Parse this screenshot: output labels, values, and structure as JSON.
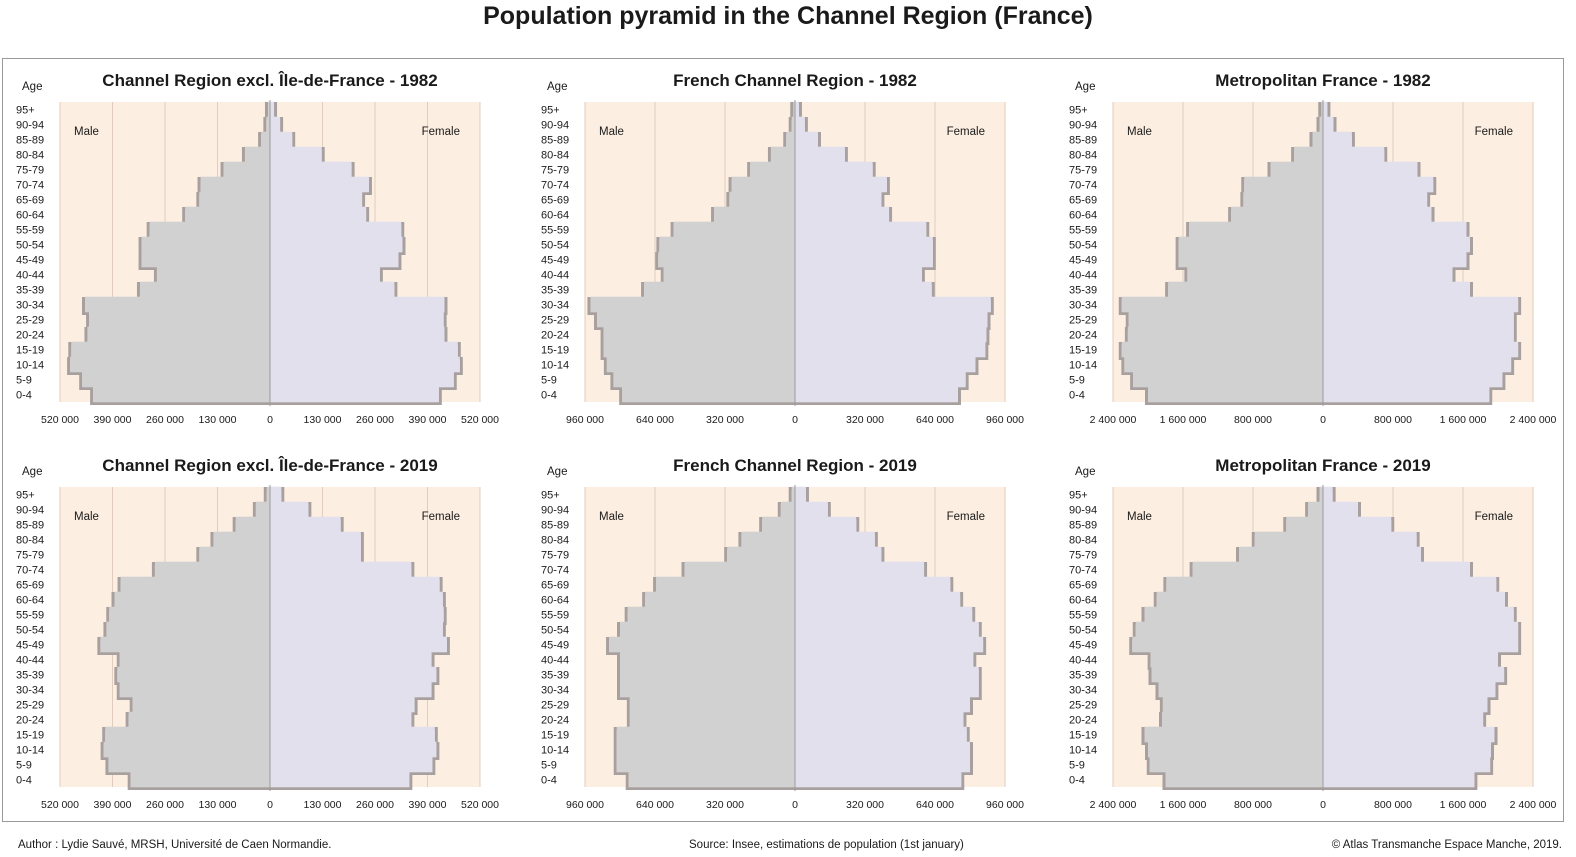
{
  "title": "Population pyramid in the Channel Region (France)",
  "footer": {
    "author": "Author : Lydie Sauvé, MRSH, Université de Caen Normandie.",
    "source": "Source: Insee, estimations de population (1st january)",
    "copyright": "© Atlas Transmanche Espace Manche, 2019."
  },
  "colors": {
    "background_fill": "#fdeee2",
    "male_bars": "#d1d1d1",
    "female_bars": "#e3e0ee",
    "bar_shadow": "#a7a09e",
    "grid": "#e0cdbd",
    "axis": "#9a9a9a"
  },
  "chart_data": [
    {
      "type": "bar",
      "title": "Channel Region excl. Île-de-France - 1982",
      "y_axis_title": "Age",
      "left_label": "Male",
      "right_label": "Female",
      "tick_labels": [
        "520 000",
        "390 000",
        "260 000",
        "130 000",
        "0",
        "130 000",
        "260 000",
        "390 000",
        "520 000"
      ],
      "xlim": [
        -520000,
        520000
      ],
      "grid": true,
      "categories": [
        "95+",
        "90-94",
        "85-89",
        "80-84",
        "75-79",
        "70-74",
        "65-69",
        "60-64",
        "55-59",
        "50-54",
        "45-49",
        "40-44",
        "35-39",
        "30-34",
        "25-29",
        "20-24",
        "15-19",
        "10-14",
        "5-9",
        "0-4"
      ],
      "series": [
        {
          "name": "Male",
          "values": [
            5000,
            9000,
            22000,
            62000,
            115000,
            172000,
            175000,
            210000,
            298000,
            318000,
            318000,
            280000,
            322000,
            458000,
            448000,
            452000,
            492000,
            495000,
            465000,
            438000
          ]
        },
        {
          "name": "Female",
          "values": [
            10000,
            25000,
            55000,
            128000,
            202000,
            245000,
            228000,
            238000,
            325000,
            328000,
            318000,
            272000,
            308000,
            432000,
            430000,
            432000,
            465000,
            470000,
            455000,
            418000
          ]
        }
      ]
    },
    {
      "type": "bar",
      "title": "French Channel Region - 1982",
      "y_axis_title": "Age",
      "left_label": "Male",
      "right_label": "Female",
      "tick_labels": [
        "960 000",
        "640 000",
        "320 000",
        "0",
        "320 000",
        "640 000",
        "960 000"
      ],
      "xlim": [
        -960000,
        960000
      ],
      "grid": true,
      "categories": [
        "95+",
        "90-94",
        "85-89",
        "80-84",
        "75-79",
        "70-74",
        "65-69",
        "60-64",
        "55-59",
        "50-54",
        "45-49",
        "40-44",
        "35-39",
        "30-34",
        "25-29",
        "20-24",
        "15-19",
        "10-14",
        "5-9",
        "0-4"
      ],
      "series": [
        {
          "name": "Male",
          "values": [
            8000,
            15000,
            40000,
            110000,
            205000,
            290000,
            300000,
            370000,
            555000,
            620000,
            625000,
            600000,
            690000,
            935000,
            905000,
            875000,
            875000,
            860000,
            830000,
            790000
          ]
        },
        {
          "name": "Female",
          "values": [
            18000,
            45000,
            105000,
            228000,
            355000,
            420000,
            395000,
            430000,
            600000,
            630000,
            630000,
            580000,
            625000,
            895000,
            880000,
            875000,
            870000,
            825000,
            780000,
            745000
          ]
        }
      ]
    },
    {
      "type": "bar",
      "title": "Metropolitan France  - 1982",
      "y_axis_title": "Age",
      "left_label": "Male",
      "right_label": "Female",
      "tick_labels": [
        "2 400 000",
        "1 600 000",
        "800 000",
        "0",
        "800 000",
        "1 600 000",
        "2 400 000"
      ],
      "xlim": [
        -2400000,
        2400000
      ],
      "grid": true,
      "categories": [
        "95+",
        "90-94",
        "85-89",
        "80-84",
        "75-79",
        "70-74",
        "65-69",
        "60-64",
        "55-59",
        "50-54",
        "45-49",
        "40-44",
        "35-39",
        "30-34",
        "25-29",
        "20-24",
        "15-19",
        "10-14",
        "5-9",
        "0-4"
      ],
      "series": [
        {
          "name": "Male",
          "values": [
            20000,
            40000,
            120000,
            330000,
            600000,
            900000,
            910000,
            1050000,
            1530000,
            1650000,
            1650000,
            1550000,
            1770000,
            2300000,
            2220000,
            2230000,
            2300000,
            2270000,
            2170000,
            2000000
          ]
        },
        {
          "name": "Female",
          "values": [
            50000,
            120000,
            330000,
            700000,
            1080000,
            1260000,
            1190000,
            1240000,
            1640000,
            1680000,
            1640000,
            1480000,
            1680000,
            2230000,
            2180000,
            2180000,
            2230000,
            2150000,
            2050000,
            1900000
          ]
        }
      ]
    },
    {
      "type": "bar",
      "title": "Channel Region excl. Île-de-France - 2019",
      "y_axis_title": "Age",
      "left_label": "Male",
      "right_label": "Female",
      "tick_labels": [
        "520 000",
        "390 000",
        "260 000",
        "130 000",
        "0",
        "130 000",
        "260 000",
        "390 000",
        "520 000"
      ],
      "xlim": [
        -520000,
        520000
      ],
      "grid": true,
      "categories": [
        "95+",
        "90-94",
        "85-89",
        "80-84",
        "75-79",
        "70-74",
        "65-69",
        "60-64",
        "55-59",
        "50-54",
        "45-49",
        "40-44",
        "35-39",
        "30-34",
        "25-29",
        "20-24",
        "15-19",
        "10-14",
        "5-9",
        "0-4"
      ],
      "series": [
        {
          "name": "Male",
          "values": [
            8000,
            35000,
            85000,
            140000,
            175000,
            285000,
            370000,
            385000,
            398000,
            405000,
            420000,
            372000,
            378000,
            372000,
            340000,
            350000,
            408000,
            412000,
            400000,
            345000
          ]
        },
        {
          "name": "Female",
          "values": [
            28000,
            95000,
            175000,
            225000,
            225000,
            350000,
            420000,
            428000,
            430000,
            428000,
            438000,
            400000,
            412000,
            400000,
            358000,
            350000,
            408000,
            412000,
            402000,
            345000
          ]
        }
      ]
    },
    {
      "type": "bar",
      "title": "French Channel Region  - 2019",
      "y_axis_title": "Age",
      "left_label": "Male",
      "right_label": "Female",
      "tick_labels": [
        "960 000",
        "640 000",
        "320 000",
        "0",
        "320 000",
        "640 000",
        "960 000"
      ],
      "xlim": [
        -960000,
        960000
      ],
      "grid": true,
      "categories": [
        "95+",
        "90-94",
        "85-89",
        "80-84",
        "75-79",
        "70-74",
        "65-69",
        "60-64",
        "55-59",
        "50-54",
        "45-49",
        "40-44",
        "35-39",
        "30-34",
        "25-29",
        "20-24",
        "15-19",
        "10-14",
        "5-9",
        "0-4"
      ],
      "series": [
        {
          "name": "Male",
          "values": [
            15000,
            65000,
            150000,
            245000,
            310000,
            505000,
            635000,
            685000,
            765000,
            800000,
            850000,
            800000,
            800000,
            800000,
            755000,
            755000,
            815000,
            815000,
            815000,
            760000
          ]
        },
        {
          "name": "Female",
          "values": [
            50000,
            150000,
            280000,
            365000,
            395000,
            590000,
            710000,
            755000,
            810000,
            840000,
            860000,
            815000,
            840000,
            840000,
            800000,
            770000,
            785000,
            800000,
            800000,
            760000
          ]
        }
      ]
    },
    {
      "type": "bar",
      "title": "Metropolitan France - 2019",
      "y_axis_title": "Age",
      "left_label": "Male",
      "right_label": "Female",
      "tick_labels": [
        "2 400 000",
        "1 600 000",
        "800 000",
        "0",
        "800 000",
        "1 600 000",
        "2 400 000"
      ],
      "xlim": [
        -2400000,
        2400000
      ],
      "grid": true,
      "categories": [
        "95+",
        "90-94",
        "85-89",
        "80-84",
        "75-79",
        "70-74",
        "65-69",
        "60-64",
        "55-59",
        "50-54",
        "45-49",
        "40-44",
        "35-39",
        "30-34",
        "25-29",
        "20-24",
        "15-19",
        "10-14",
        "5-9",
        "0-4"
      ],
      "series": [
        {
          "name": "Male",
          "values": [
            40000,
            170000,
            420000,
            780000,
            960000,
            1490000,
            1790000,
            1900000,
            2040000,
            2140000,
            2180000,
            1970000,
            1960000,
            1880000,
            1830000,
            1840000,
            2040000,
            2000000,
            1980000,
            1800000
          ]
        },
        {
          "name": "Female",
          "values": [
            110000,
            400000,
            780000,
            1070000,
            1120000,
            1680000,
            1980000,
            2080000,
            2180000,
            2230000,
            2230000,
            2000000,
            2070000,
            1970000,
            1880000,
            1830000,
            1960000,
            1920000,
            1910000,
            1730000
          ]
        }
      ]
    }
  ]
}
